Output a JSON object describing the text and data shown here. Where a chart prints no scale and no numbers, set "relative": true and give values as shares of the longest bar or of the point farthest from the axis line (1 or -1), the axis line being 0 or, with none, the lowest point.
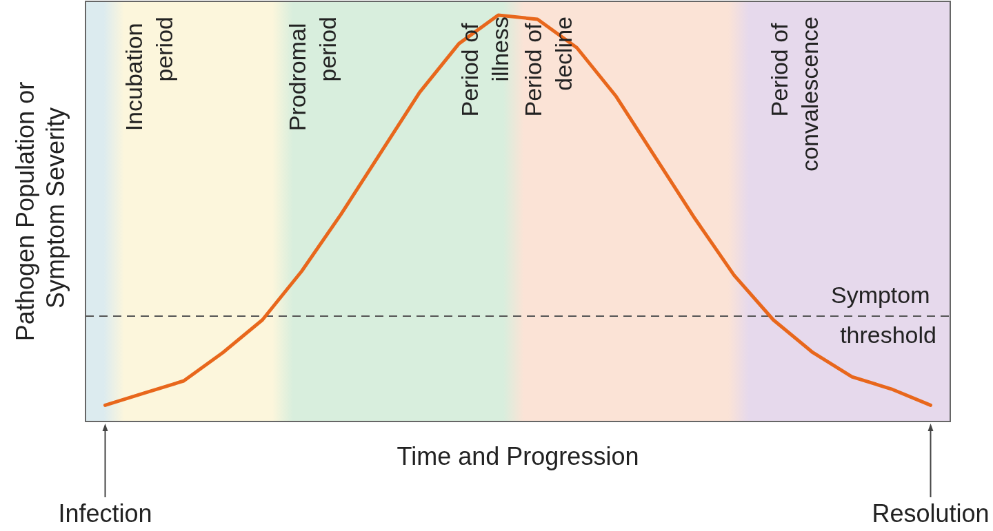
{
  "chart_data": {
    "type": "line",
    "relative": true,
    "xlabel": "Time and Progression",
    "ylabel": "Pathogen Population or Symptom Severity",
    "grid": false,
    "marker": "none",
    "line_style": "solid",
    "categories": [
      null,
      null,
      null,
      null,
      null,
      null,
      null,
      null,
      null,
      null,
      null,
      null,
      null,
      null,
      null,
      null,
      null,
      null,
      null,
      null,
      null,
      null
    ],
    "series": [
      {
        "color": "#e8671c",
        "values": [
          0.04,
          0.07,
          0.1,
          0.17,
          0.25,
          0.37,
          0.51,
          0.66,
          0.81,
          0.93,
          1.0,
          0.99,
          0.92,
          0.8,
          0.65,
          0.5,
          0.36,
          0.25,
          0.17,
          0.11,
          0.08,
          0.04
        ]
      }
    ],
    "ref_lines": [
      {
        "axis": "y",
        "value": 0.263,
        "label": "Symptom threshold",
        "color": "#555555",
        "line_style": "dashed"
      }
    ],
    "annotations": [
      "Incubation period",
      "Prodromal period",
      "Period of illness",
      "Period of decline",
      "Period of convalescence",
      "Infection",
      "Resolution"
    ]
  }
}
